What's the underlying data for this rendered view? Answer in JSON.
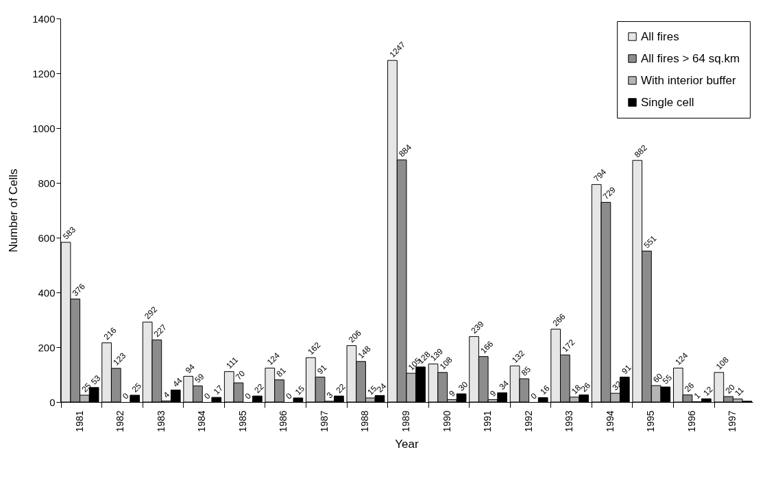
{
  "chart_data": {
    "type": "bar",
    "xlabel": "Year",
    "ylabel": "Number of Cells",
    "categories": [
      "1981",
      "1982",
      "1983",
      "1984",
      "1985",
      "1986",
      "1987",
      "1988",
      "1989",
      "1990",
      "1991",
      "1992",
      "1993",
      "1994",
      "1995",
      "1996",
      "1997"
    ],
    "series": [
      {
        "name": "All fires",
        "color": "#e6e6e6",
        "values": [
          583,
          216,
          292,
          94,
          111,
          124,
          162,
          206,
          1247,
          139,
          239,
          132,
          266,
          794,
          882,
          124,
          108
        ],
        "value_labels": [
          "583",
          "216",
          "292",
          "94",
          "111",
          "124",
          "162",
          "206",
          "1247",
          "139",
          "239",
          "132",
          "266",
          "794",
          "882",
          "124",
          "108"
        ]
      },
      {
        "name": "All fires > 64 sq.km",
        "color": "#8c8c8c",
        "values": [
          376,
          123,
          227,
          59,
          70,
          81,
          91,
          148,
          884,
          108,
          166,
          85,
          172,
          729,
          551,
          26,
          20
        ],
        "value_labels": [
          "376",
          "123",
          "227",
          "59",
          "70",
          "81",
          "91",
          "148",
          "884",
          "108",
          "166",
          "85",
          "172",
          "729",
          "551",
          "26",
          "20"
        ]
      },
      {
        "name": "With interior buffer",
        "color": "#b4b4b4",
        "values": [
          25,
          0,
          4,
          0,
          0,
          0,
          3,
          15,
          105,
          9,
          9,
          0,
          18,
          32,
          60,
          1,
          11
        ],
        "value_labels": [
          "25",
          "0",
          "4",
          "0",
          "0",
          "0",
          "3",
          "15",
          "105",
          "9",
          "9",
          "0",
          "18",
          "32",
          "60",
          "1",
          "11"
        ]
      },
      {
        "name": "Single cell",
        "color": "#000000",
        "values": [
          53,
          25,
          44,
          17,
          22,
          15,
          22,
          24,
          128,
          30,
          34,
          16,
          26,
          91,
          55,
          12,
          3
        ],
        "value_labels": [
          "53",
          "25",
          "44",
          "17",
          "22",
          "15",
          "22",
          "24",
          "128",
          "30",
          "34",
          "16",
          "26",
          "91",
          "55",
          "12",
          null
        ]
      }
    ],
    "ylim": [
      0,
      1400
    ],
    "yticks": [
      0,
      200,
      400,
      600,
      800,
      1000,
      1200,
      1400
    ],
    "grid": false,
    "legend": "top right"
  }
}
